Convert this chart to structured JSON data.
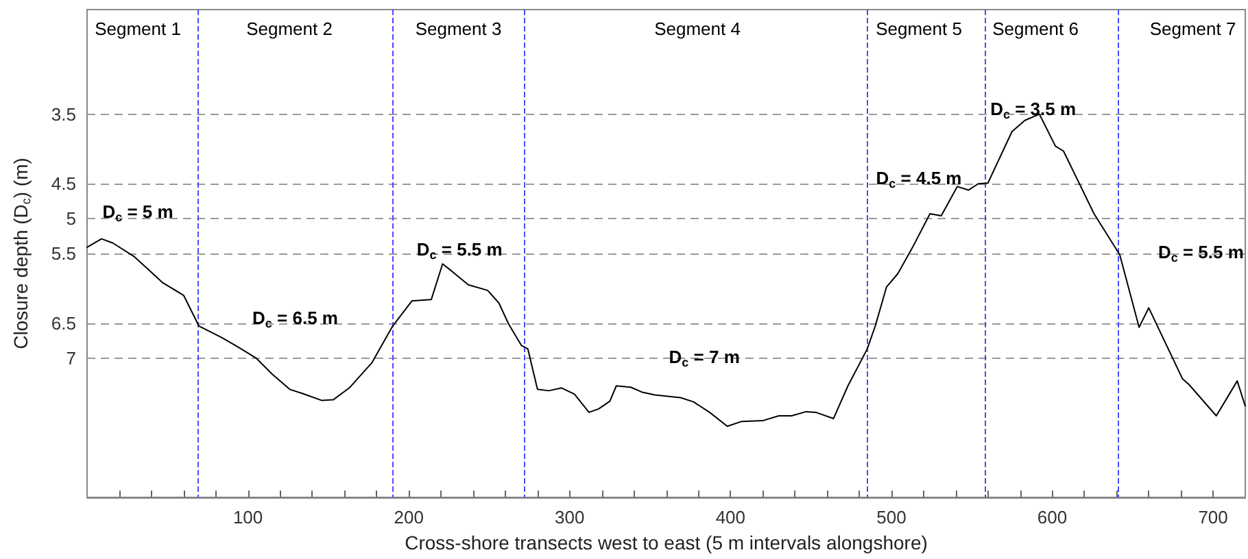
{
  "chart_data": {
    "type": "line",
    "xlabel": "Cross-shore transects west to east (5 m intervals alongshore)",
    "ylabel": "Closure depth (D$_{c}$) (m)",
    "x": [
      0,
      9,
      16,
      29,
      40,
      47,
      60,
      69.5,
      84,
      93,
      105,
      115,
      126,
      134,
      146,
      153,
      163,
      177,
      190,
      202,
      214,
      221,
      226,
      237,
      249,
      256,
      262,
      270,
      274,
      280,
      287,
      295,
      303,
      312,
      318,
      325,
      329,
      338,
      345,
      353,
      369,
      377,
      387,
      398,
      407,
      420,
      430,
      438,
      447,
      453,
      464,
      473,
      485,
      490,
      497,
      504,
      513,
      524,
      531,
      541,
      548,
      554,
      560,
      575,
      583,
      592,
      602,
      607,
      626,
      642,
      654,
      660,
      681,
      685,
      702,
      715,
      720
    ],
    "series": [
      {
        "color": "#000000",
        "values": [
          5.41,
          5.29,
          5.35,
          5.54,
          5.77,
          5.92,
          6.1,
          6.54,
          6.71,
          6.83,
          7.0,
          7.23,
          7.45,
          7.51,
          7.61,
          7.6,
          7.43,
          7.07,
          6.54,
          6.18,
          6.16,
          5.65,
          5.74,
          5.95,
          6.03,
          6.21,
          6.51,
          6.82,
          6.87,
          7.45,
          7.47,
          7.43,
          7.52,
          7.78,
          7.73,
          7.62,
          7.4,
          7.42,
          7.49,
          7.53,
          7.57,
          7.63,
          7.78,
          7.98,
          7.91,
          7.9,
          7.83,
          7.83,
          7.77,
          7.78,
          7.87,
          7.4,
          6.87,
          6.54,
          5.98,
          5.79,
          5.42,
          4.93,
          4.96,
          4.54,
          4.59,
          4.5,
          4.49,
          3.75,
          3.59,
          3.5,
          3.96,
          4.03,
          4.93,
          5.52,
          6.56,
          6.28,
          7.3,
          7.38,
          7.83,
          7.33,
          7.69
        ]
      }
    ],
    "xlim": [
      0,
      720
    ],
    "xticks": [
      {
        "value": 20,
        "label": null
      },
      {
        "value": 40,
        "label": null
      },
      {
        "value": 60,
        "label": null
      },
      {
        "value": 80,
        "label": null
      },
      100,
      {
        "value": 120,
        "label": null
      },
      {
        "value": 140,
        "label": null
      },
      {
        "value": 160,
        "label": null
      },
      {
        "value": 180,
        "label": null
      },
      200,
      {
        "value": 220,
        "label": null
      },
      {
        "value": 240,
        "label": null
      },
      {
        "value": 260,
        "label": null
      },
      {
        "value": 280,
        "label": null
      },
      300,
      {
        "value": 320,
        "label": null
      },
      {
        "value": 340,
        "label": null
      },
      {
        "value": 360,
        "label": null
      },
      {
        "value": 380,
        "label": null
      },
      400,
      {
        "value": 420,
        "label": null
      },
      {
        "value": 440,
        "label": null
      },
      {
        "value": 460,
        "label": null
      },
      {
        "value": 480,
        "label": null
      },
      500,
      {
        "value": 520,
        "label": null
      },
      {
        "value": 540,
        "label": null
      },
      {
        "value": 560,
        "label": null
      },
      {
        "value": 580,
        "label": null
      },
      600,
      {
        "value": 620,
        "label": null
      },
      {
        "value": 640,
        "label": null
      },
      {
        "value": 660,
        "label": null
      },
      {
        "value": 680,
        "label": null
      },
      700
    ],
    "ylim": [
      9,
      2
    ],
    "yticks": [
      3.5,
      4.5,
      5,
      5.5,
      6.5,
      7
    ],
    "grid": "y",
    "marker": "none",
    "line_style": "solid",
    "ref_lines": [
      {
        "axis": "x",
        "value": 69,
        "color": "#4a4aff",
        "line_style": "dashed"
      },
      {
        "axis": "x",
        "value": 190,
        "color": "#4a4aff",
        "line_style": "dashed"
      },
      {
        "axis": "x",
        "value": 272,
        "color": "#4a4aff",
        "line_style": "dashed"
      },
      {
        "axis": "x",
        "value": 485,
        "color": "#4a4aff",
        "line_style": "dashed"
      },
      {
        "axis": "x",
        "value": 558,
        "color": "#4a4aff",
        "line_style": "dashed"
      },
      {
        "axis": "x",
        "value": 641,
        "color": "#4a4aff",
        "line_style": "dashed"
      }
    ],
    "annotations": [
      "Segment 1",
      "Segment 2",
      "Segment 3",
      "Segment 4",
      "Segment 5",
      "Segment 6",
      "Segment 7",
      "D$_{c}$ = 5 m",
      "D$_{c}$ = 6.5 m",
      "D$_{c}$ = 5.5 m",
      "D$_{c}$ = 7 m",
      "D$_{c}$ = 4.5 m",
      "D$_{c}$ = 3.5 m",
      "D$_{c}$ = 5.5 m"
    ]
  }
}
